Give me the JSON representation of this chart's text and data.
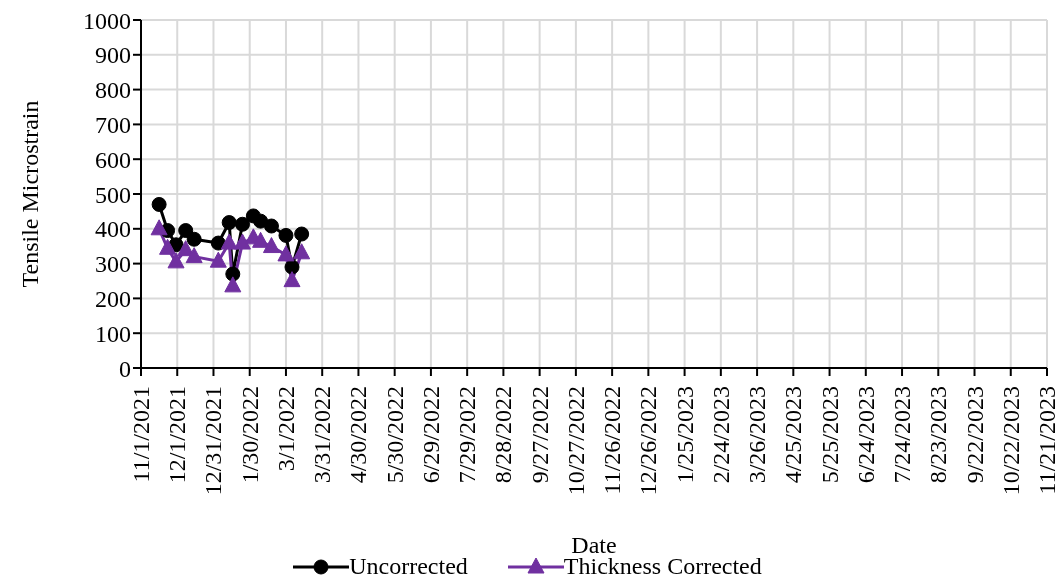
{
  "chart_data": {
    "type": "line",
    "xlabel": "Date",
    "ylabel": "Tensile Microstrain",
    "x": [
      "2021-11-16",
      "2021-11-23",
      "2021-11-30",
      "2021-12-08",
      "2021-12-15",
      "2022-01-04",
      "2022-01-13",
      "2022-01-16",
      "2022-01-24",
      "2022-02-02",
      "2022-02-08",
      "2022-02-17",
      "2022-03-01",
      "2022-03-06",
      "2022-03-14"
    ],
    "series": [
      {
        "name": "Uncorrected",
        "color": "#000000",
        "marker": "circle",
        "values": [
          470,
          395,
          354,
          395,
          370,
          359,
          418,
          270,
          413,
          437,
          422,
          408,
          381,
          290,
          385
        ]
      },
      {
        "name": "Thickness Corrected",
        "color": "#7030a0",
        "marker": "triangle",
        "values": [
          400,
          344,
          305,
          340,
          320,
          307,
          359,
          236,
          359,
          374,
          364,
          349,
          325,
          251,
          331
        ]
      }
    ],
    "xlim": [
      "2021-11-01",
      "2023-11-21"
    ],
    "xticks": [
      {
        "value": "2021-11-01",
        "label": "11/1/2021"
      },
      {
        "value": "2021-12-01",
        "label": "12/1/2021"
      },
      {
        "value": "2021-12-31",
        "label": "12/31/2021"
      },
      {
        "value": "2022-01-30",
        "label": "1/30/2022"
      },
      {
        "value": "2022-03-01",
        "label": "3/1/2022"
      },
      {
        "value": "2022-03-31",
        "label": "3/31/2022"
      },
      {
        "value": "2022-04-30",
        "label": "4/30/2022"
      },
      {
        "value": "2022-05-30",
        "label": "5/30/2022"
      },
      {
        "value": "2022-06-29",
        "label": "6/29/2022"
      },
      {
        "value": "2022-07-29",
        "label": "7/29/2022"
      },
      {
        "value": "2022-08-28",
        "label": "8/28/2022"
      },
      {
        "value": "2022-09-27",
        "label": "9/27/2022"
      },
      {
        "value": "2022-10-27",
        "label": "10/27/2022"
      },
      {
        "value": "2022-11-26",
        "label": "11/26/2022"
      },
      {
        "value": "2022-12-26",
        "label": "12/26/2022"
      },
      {
        "value": "2023-01-25",
        "label": "1/25/2023"
      },
      {
        "value": "2023-02-24",
        "label": "2/24/2023"
      },
      {
        "value": "2023-03-26",
        "label": "3/26/2023"
      },
      {
        "value": "2023-04-25",
        "label": "4/25/2023"
      },
      {
        "value": "2023-05-25",
        "label": "5/25/2023"
      },
      {
        "value": "2023-06-24",
        "label": "6/24/2023"
      },
      {
        "value": "2023-07-24",
        "label": "7/24/2023"
      },
      {
        "value": "2023-08-23",
        "label": "8/23/2023"
      },
      {
        "value": "2023-09-22",
        "label": "9/22/2023"
      },
      {
        "value": "2023-10-22",
        "label": "10/22/2023"
      },
      {
        "value": "2023-11-21",
        "label": "11/21/2023"
      }
    ],
    "ylim": [
      0,
      1000
    ],
    "yticks": [
      0,
      100,
      200,
      300,
      400,
      500,
      600,
      700,
      800,
      900,
      1000
    ],
    "grid": true,
    "legend": "bottom",
    "line_style": "solid"
  }
}
